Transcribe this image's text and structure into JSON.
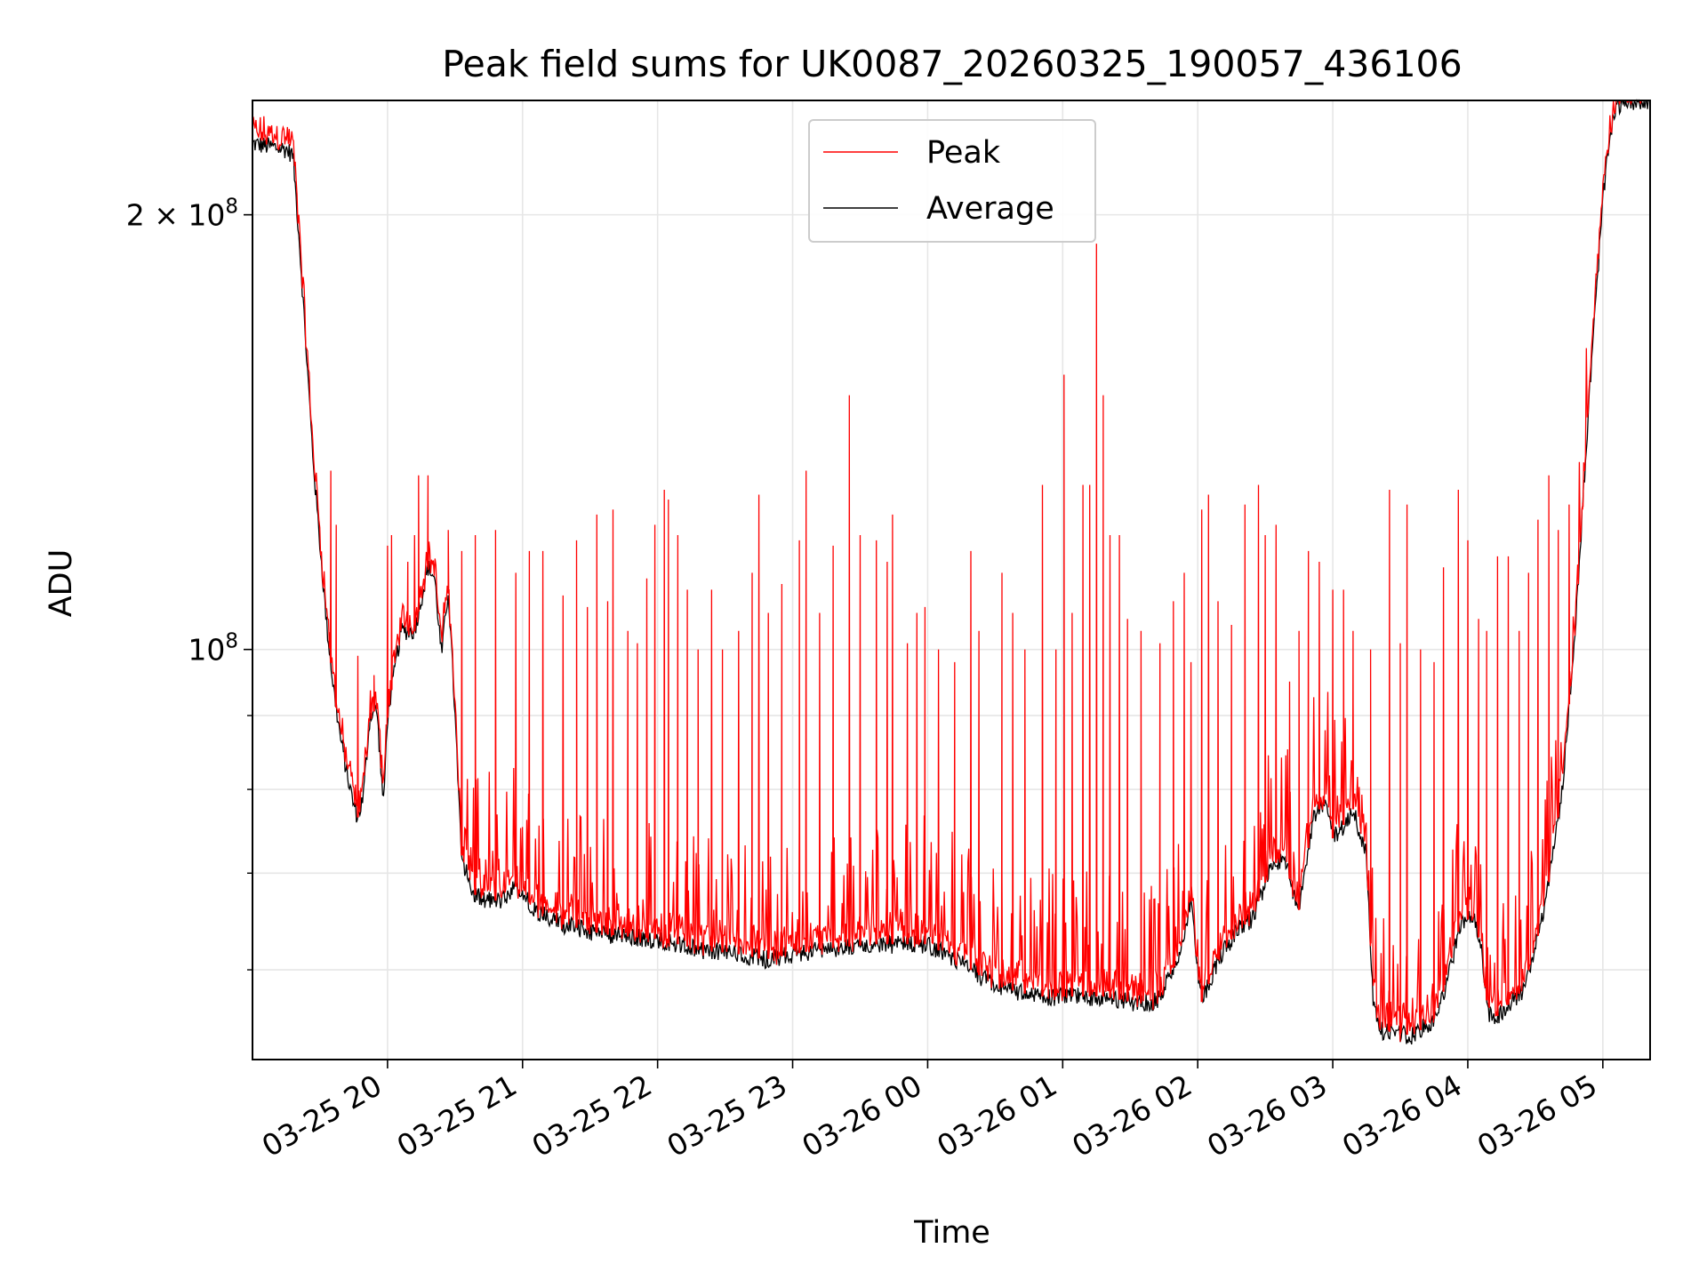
{
  "chart_data": {
    "type": "line",
    "title": "Peak field sums for UK0087_20260325_190057_436106",
    "xlabel": "Time",
    "ylabel": "ADU",
    "y_scale": "log",
    "ylim": [
      52000000,
      240000000
    ],
    "x_unit": "hours since 03-25 19:00",
    "xlim": [
      0,
      10.35
    ],
    "grid": true,
    "legend_placement": "upper center",
    "x_ticks": [
      {
        "t": 1,
        "label": "03-25 20"
      },
      {
        "t": 2,
        "label": "03-25 21"
      },
      {
        "t": 3,
        "label": "03-25 22"
      },
      {
        "t": 4,
        "label": "03-25 23"
      },
      {
        "t": 5,
        "label": "03-26 00"
      },
      {
        "t": 6,
        "label": "03-26 01"
      },
      {
        "t": 7,
        "label": "03-26 02"
      },
      {
        "t": 8,
        "label": "03-26 03"
      },
      {
        "t": 9,
        "label": "03-26 04"
      },
      {
        "t": 10,
        "label": "03-26 05"
      }
    ],
    "y_ticks": [
      {
        "v": 100000000,
        "base": "10",
        "exp": "8",
        "coef": ""
      },
      {
        "v": 200000000,
        "base": "10",
        "exp": "8",
        "coef": "2 × "
      }
    ],
    "y_minor_ticks": [
      60000000,
      70000000,
      80000000,
      90000000
    ],
    "series": [
      {
        "name": "Peak",
        "color": "#ff0000"
      },
      {
        "name": "Average",
        "color": "#000000"
      }
    ],
    "average_profile": [
      [
        0.0,
        224000000
      ],
      [
        0.25,
        222000000
      ],
      [
        0.3,
        220000000
      ],
      [
        0.35,
        190000000
      ],
      [
        0.4,
        160000000
      ],
      [
        0.45,
        135000000
      ],
      [
        0.5,
        118000000
      ],
      [
        0.55,
        104000000
      ],
      [
        0.6,
        94000000
      ],
      [
        0.65,
        87000000
      ],
      [
        0.7,
        82000000
      ],
      [
        0.75,
        78000000
      ],
      [
        0.78,
        76500000
      ],
      [
        0.82,
        79000000
      ],
      [
        0.87,
        90000000
      ],
      [
        0.92,
        91000000
      ],
      [
        0.97,
        78000000
      ],
      [
        1.0,
        90000000
      ],
      [
        1.1,
        103000000
      ],
      [
        1.2,
        103000000
      ],
      [
        1.3,
        114000000
      ],
      [
        1.35,
        112000000
      ],
      [
        1.4,
        99000000
      ],
      [
        1.45,
        110000000
      ],
      [
        1.5,
        90000000
      ],
      [
        1.55,
        72000000
      ],
      [
        1.62,
        68000000
      ],
      [
        1.7,
        67000000
      ],
      [
        1.85,
        67000000
      ],
      [
        1.95,
        68500000
      ],
      [
        2.1,
        66000000
      ],
      [
        2.3,
        64500000
      ],
      [
        2.6,
        63500000
      ],
      [
        3.0,
        63000000
      ],
      [
        3.3,
        62000000
      ],
      [
        3.6,
        61500000
      ],
      [
        3.8,
        61000000
      ],
      [
        4.2,
        62000000
      ],
      [
        4.6,
        62500000
      ],
      [
        5.0,
        62500000
      ],
      [
        5.2,
        61000000
      ],
      [
        5.5,
        58500000
      ],
      [
        5.8,
        57500000
      ],
      [
        6.0,
        57500000
      ],
      [
        6.3,
        57500000
      ],
      [
        6.5,
        57000000
      ],
      [
        6.7,
        57000000
      ],
      [
        6.85,
        61000000
      ],
      [
        6.95,
        67000000
      ],
      [
        7.0,
        60000000
      ],
      [
        7.03,
        57000000
      ],
      [
        7.15,
        61000000
      ],
      [
        7.3,
        64000000
      ],
      [
        7.4,
        65000000
      ],
      [
        7.55,
        71000000
      ],
      [
        7.65,
        71500000
      ],
      [
        7.7,
        68000000
      ],
      [
        7.75,
        66000000
      ],
      [
        7.85,
        76000000
      ],
      [
        7.95,
        79000000
      ],
      [
        8.0,
        74000000
      ],
      [
        8.1,
        76000000
      ],
      [
        8.15,
        77500000
      ],
      [
        8.25,
        72000000
      ],
      [
        8.3,
        57000000
      ],
      [
        8.35,
        54500000
      ],
      [
        8.6,
        54000000
      ],
      [
        8.75,
        55500000
      ],
      [
        8.85,
        59000000
      ],
      [
        8.95,
        65000000
      ],
      [
        9.05,
        65000000
      ],
      [
        9.1,
        62000000
      ],
      [
        9.15,
        56000000
      ],
      [
        9.2,
        55500000
      ],
      [
        9.4,
        58000000
      ],
      [
        9.5,
        62000000
      ],
      [
        9.6,
        69000000
      ],
      [
        9.7,
        80000000
      ],
      [
        9.8,
        105000000
      ],
      [
        9.9,
        150000000
      ],
      [
        10.0,
        205000000
      ],
      [
        10.05,
        225000000
      ],
      [
        10.1,
        238000000
      ],
      [
        10.2,
        240000000
      ],
      [
        10.35,
        240000000
      ]
    ],
    "peak_spikes": [
      [
        0.58,
        133000000
      ],
      [
        0.62,
        122000000
      ],
      [
        0.78,
        99000000
      ],
      [
        0.9,
        96000000
      ],
      [
        1.0,
        118000000
      ],
      [
        1.03,
        120000000
      ],
      [
        1.15,
        115000000
      ],
      [
        1.2,
        120000000
      ],
      [
        1.23,
        132000000
      ],
      [
        1.3,
        132000000
      ],
      [
        1.45,
        121000000
      ],
      [
        1.55,
        117000000
      ],
      [
        1.65,
        120000000
      ],
      [
        1.8,
        121000000
      ],
      [
        1.95,
        113000000
      ],
      [
        2.05,
        117000000
      ],
      [
        2.15,
        117000000
      ],
      [
        2.3,
        109000000
      ],
      [
        2.4,
        119000000
      ],
      [
        2.48,
        107000000
      ],
      [
        2.55,
        124000000
      ],
      [
        2.63,
        108000000
      ],
      [
        2.67,
        125000000
      ],
      [
        2.78,
        103000000
      ],
      [
        2.85,
        101000000
      ],
      [
        2.92,
        112000000
      ],
      [
        2.98,
        122000000
      ],
      [
        3.05,
        129000000
      ],
      [
        3.08,
        127000000
      ],
      [
        3.15,
        120000000
      ],
      [
        3.22,
        110000000
      ],
      [
        3.3,
        100000000
      ],
      [
        3.4,
        110000000
      ],
      [
        3.48,
        100000000
      ],
      [
        3.6,
        103000000
      ],
      [
        3.7,
        113000000
      ],
      [
        3.75,
        128000000
      ],
      [
        3.82,
        106000000
      ],
      [
        3.92,
        111000000
      ],
      [
        4.05,
        119000000
      ],
      [
        4.1,
        133000000
      ],
      [
        4.2,
        106000000
      ],
      [
        4.3,
        118000000
      ],
      [
        4.42,
        150000000
      ],
      [
        4.5,
        120000000
      ],
      [
        4.62,
        119000000
      ],
      [
        4.7,
        115000000
      ],
      [
        4.74,
        124000000
      ],
      [
        4.85,
        101000000
      ],
      [
        4.92,
        106000000
      ],
      [
        4.98,
        107000000
      ],
      [
        5.08,
        100000000
      ],
      [
        5.2,
        98000000
      ],
      [
        5.32,
        117000000
      ],
      [
        5.38,
        103000000
      ],
      [
        5.55,
        113000000
      ],
      [
        5.63,
        106000000
      ],
      [
        5.72,
        100000000
      ],
      [
        5.85,
        130000000
      ],
      [
        5.95,
        100000000
      ],
      [
        6.01,
        155000000
      ],
      [
        6.07,
        106000000
      ],
      [
        6.15,
        130000000
      ],
      [
        6.2,
        130000000
      ],
      [
        6.25,
        191000000
      ],
      [
        6.3,
        150000000
      ],
      [
        6.35,
        120000000
      ],
      [
        6.42,
        120000000
      ],
      [
        6.48,
        105000000
      ],
      [
        6.58,
        103000000
      ],
      [
        6.72,
        101000000
      ],
      [
        6.82,
        108000000
      ],
      [
        6.9,
        113000000
      ],
      [
        6.95,
        98000000
      ],
      [
        7.03,
        125000000
      ],
      [
        7.08,
        128000000
      ],
      [
        7.15,
        108000000
      ],
      [
        7.25,
        104000000
      ],
      [
        7.35,
        126000000
      ],
      [
        7.45,
        130000000
      ],
      [
        7.5,
        120000000
      ],
      [
        7.58,
        122000000
      ],
      [
        7.68,
        95000000
      ],
      [
        7.75,
        103000000
      ],
      [
        7.82,
        117000000
      ],
      [
        7.9,
        115000000
      ],
      [
        8.0,
        110000000
      ],
      [
        8.08,
        110000000
      ],
      [
        8.15,
        103000000
      ],
      [
        8.28,
        100000000
      ],
      [
        8.42,
        129000000
      ],
      [
        8.5,
        101000000
      ],
      [
        8.55,
        126000000
      ],
      [
        8.65,
        100000000
      ],
      [
        8.75,
        98000000
      ],
      [
        8.82,
        114000000
      ],
      [
        8.93,
        129000000
      ],
      [
        9.0,
        119000000
      ],
      [
        9.08,
        105000000
      ],
      [
        9.14,
        103000000
      ],
      [
        9.22,
        116000000
      ],
      [
        9.3,
        116000000
      ],
      [
        9.38,
        103000000
      ],
      [
        9.45,
        113000000
      ],
      [
        9.52,
        123000000
      ],
      [
        9.6,
        132000000
      ],
      [
        9.67,
        121000000
      ],
      [
        9.75,
        126000000
      ],
      [
        9.85,
        125000000
      ]
    ]
  }
}
